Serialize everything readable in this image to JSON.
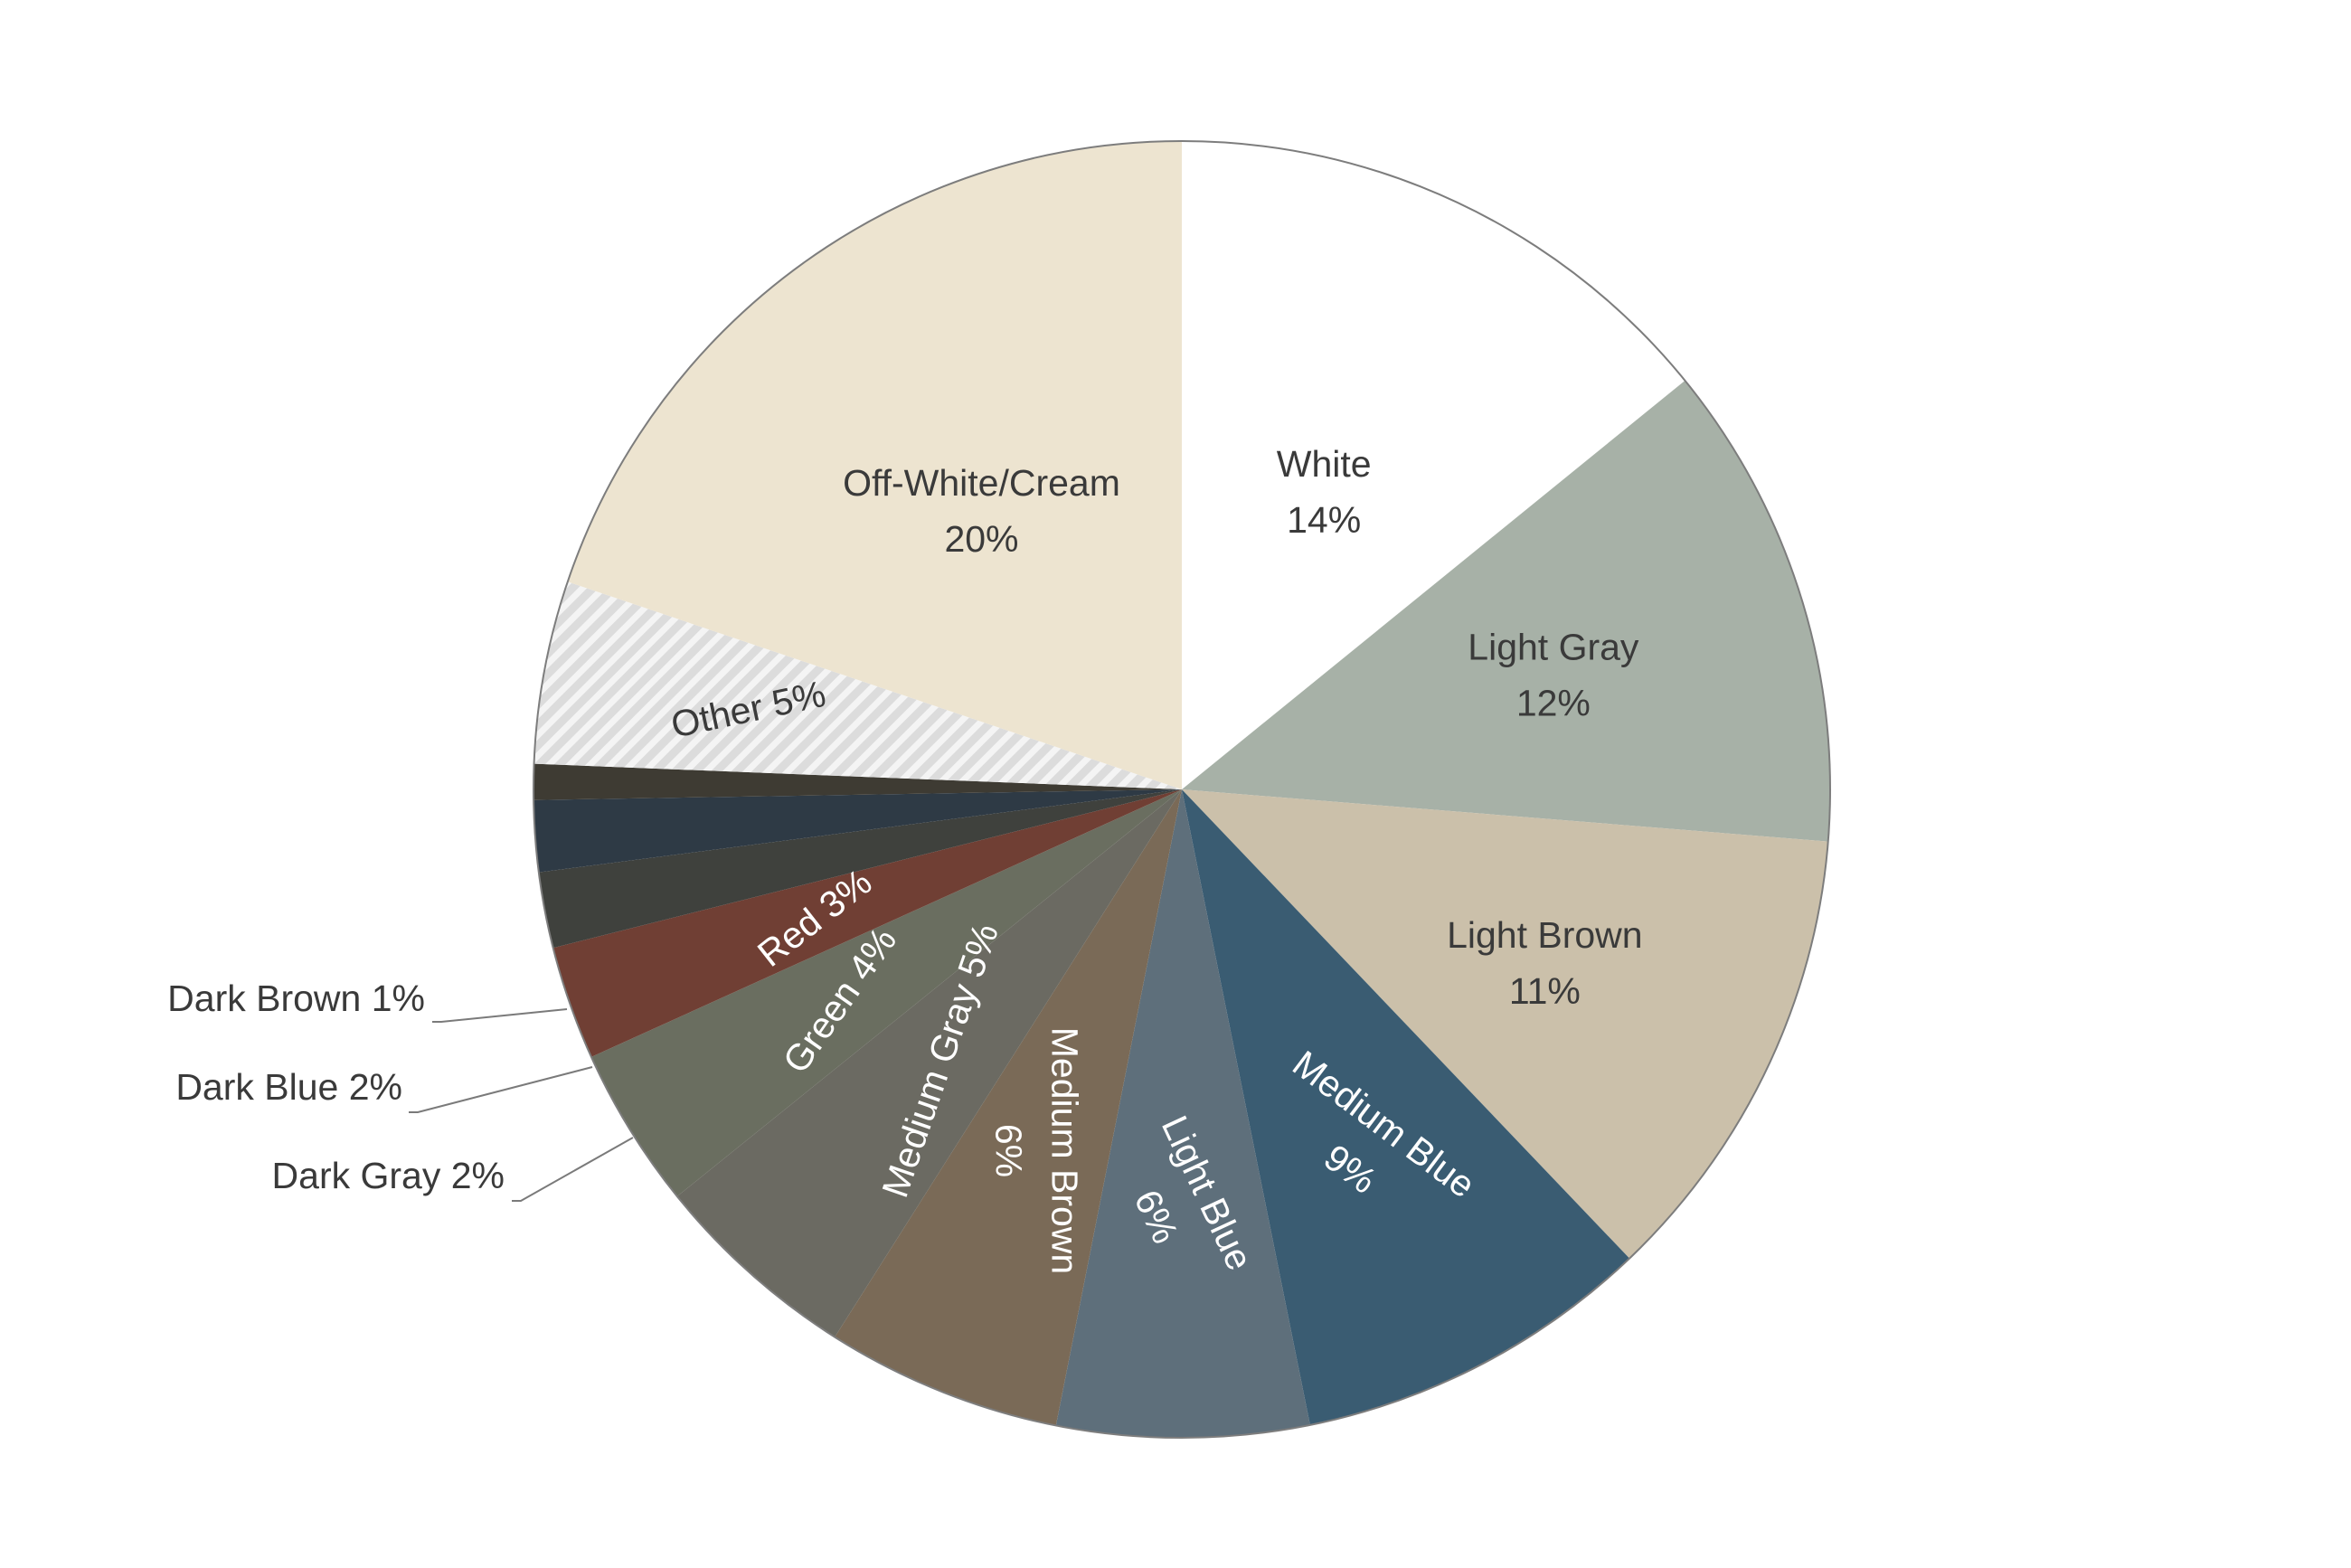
{
  "chart_data": {
    "type": "pie",
    "title": "",
    "start_angle_deg": 0,
    "direction": "clockwise",
    "slices": [
      {
        "name": "White",
        "pct_label": "14%",
        "value": 14.14,
        "color": "#ffffff",
        "text_color": "#3a3a3a"
      },
      {
        "name": "Light Gray",
        "pct_label": "12%",
        "value": 12.14,
        "color": "#a7b1a7",
        "text_color": "#3a3a3a"
      },
      {
        "name": "Light Brown",
        "pct_label": "11%",
        "value": 11.59,
        "color": "#cbc0aa",
        "text_color": "#3a3a3a"
      },
      {
        "name": "Medium Blue",
        "pct_label": "9%",
        "value": 8.96,
        "color": "#3a5c72",
        "text_color": "#ffffff"
      },
      {
        "name": "Light Blue",
        "pct_label": "6%",
        "value": 6.28,
        "color": "#5e6f7b",
        "text_color": "#ffffff"
      },
      {
        "name": "Medium Brown",
        "pct_label": "6%",
        "value": 5.88,
        "color": "#7a6a57",
        "text_color": "#ffffff"
      },
      {
        "name": "Medium Gray",
        "pct_label": "5%",
        "value": 5.21,
        "color": "#6b6a62",
        "text_color": "#ffffff"
      },
      {
        "name": "Green",
        "pct_label": "4%",
        "value": 4.03,
        "color": "#6a6e60",
        "text_color": "#ffffff"
      },
      {
        "name": "Red",
        "pct_label": "3%",
        "value": 2.84,
        "color": "#703f34",
        "text_color": "#ffffff"
      },
      {
        "name": "Dark Gray",
        "pct_label": "2%",
        "value": 1.89,
        "color": "#3f413d",
        "text_color": "#3a3a3a",
        "outside": true
      },
      {
        "name": "Dark Blue",
        "pct_label": "2%",
        "value": 1.78,
        "color": "#2e3a45",
        "text_color": "#3a3a3a",
        "outside": true
      },
      {
        "name": "Dark Brown",
        "pct_label": "1%",
        "value": 0.89,
        "color": "#3e3b33",
        "text_color": "#3a3a3a",
        "outside": true
      },
      {
        "name": "Other",
        "pct_label": "5%",
        "value": 4.56,
        "color": "#e2e2e2",
        "pattern": "diagonal-stripes",
        "text_color": "#3a3a3a"
      },
      {
        "name": "Off-White/Cream",
        "pct_label": "20%",
        "value": 19.81,
        "color": "#ede4d0",
        "text_color": "#3a3a3a"
      }
    ]
  }
}
